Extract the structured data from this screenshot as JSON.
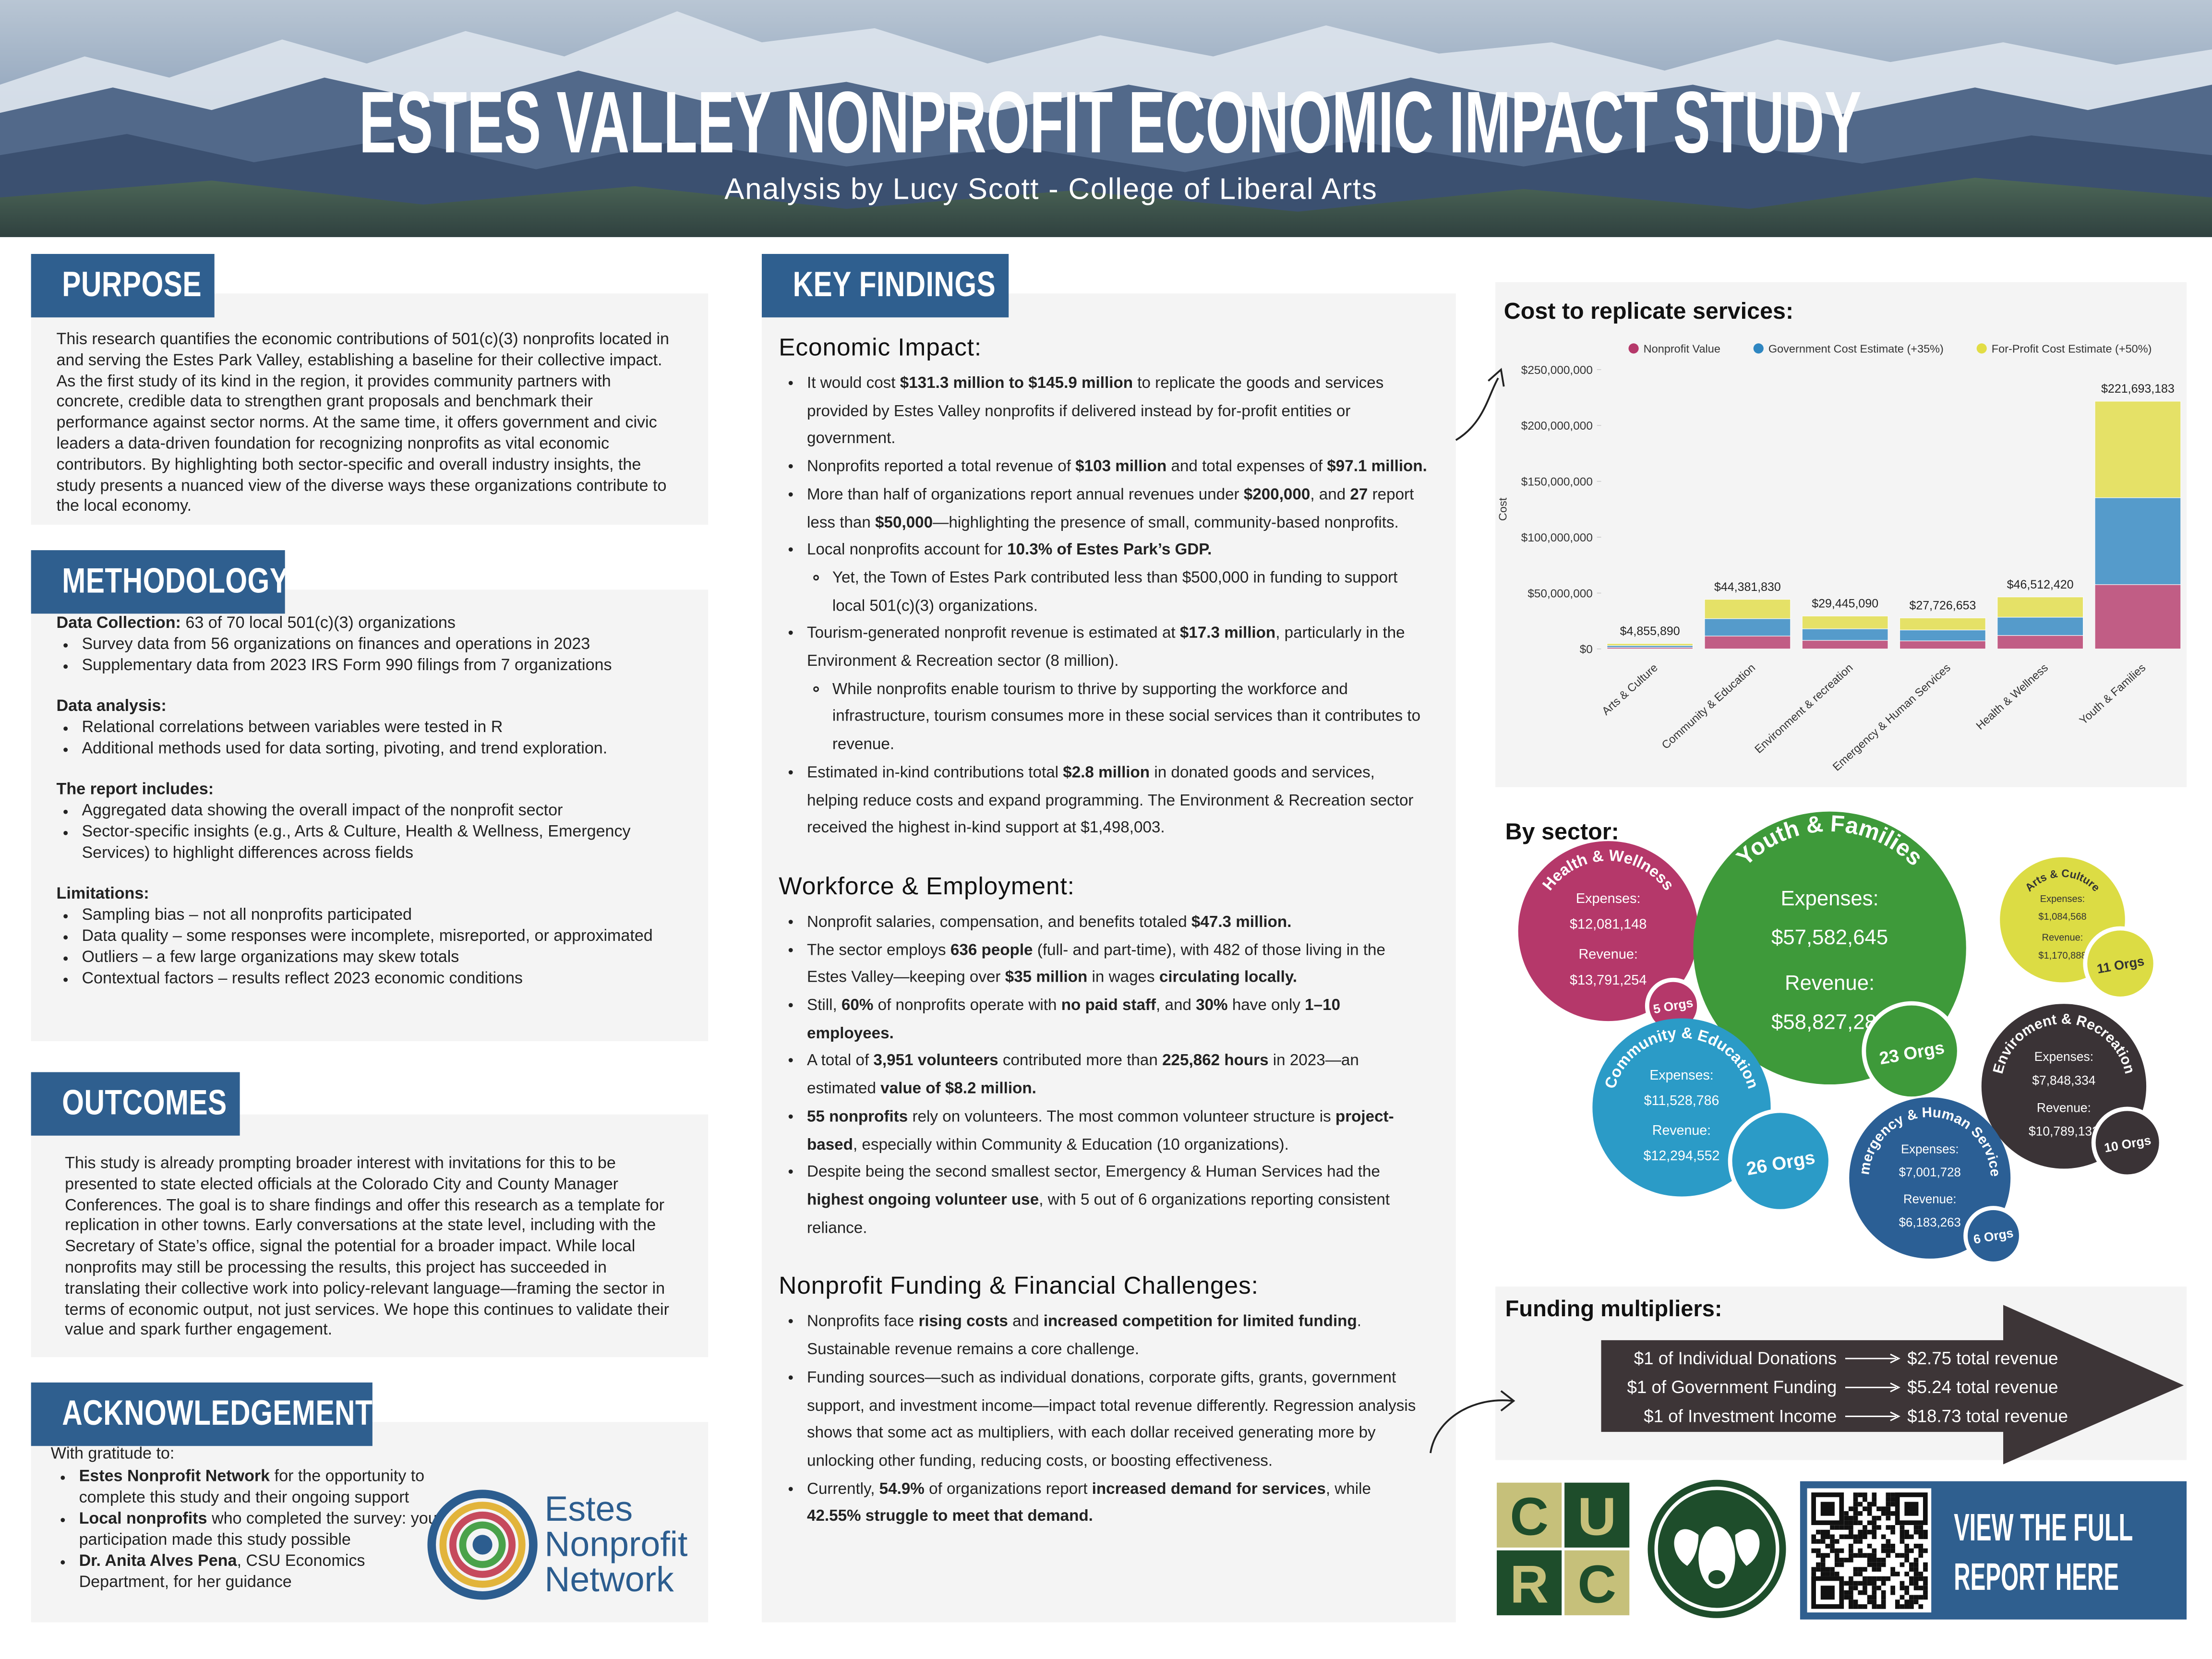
{
  "header": {
    "title": "ESTES VALLEY NONPROFIT ECONOMIC IMPACT STUDY",
    "subtitle": "Analysis by Lucy Scott - College of Liberal Arts"
  },
  "purpose": {
    "heading": "PURPOSE",
    "text": "This research quantifies the economic contributions of 501(c)(3) nonprofits located in and serving the Estes Park Valley, establishing a baseline for their collective impact. As the first study of its kind in the region, it provides community partners with concrete, credible data to strengthen grant proposals and benchmark their performance against sector norms. At the same time, it offers government and civic leaders a data-driven foundation for recognizing nonprofits as vital economic contributors. By highlighting both sector-specific and overall industry insights, the study presents a nuanced view of the diverse ways these organizations contribute to the local economy."
  },
  "methodology": {
    "heading": "METHODOLOGY",
    "groups": [
      {
        "label": "Data Collection:",
        "text": "63 of 70 local 501(c)(3) organizations",
        "bullets": [
          "Survey data from 56 organizations on finances and operations in 2023",
          "Supplementary data from 2023 IRS Form 990 filings from 7 organizations"
        ]
      },
      {
        "label": "Data analysis:",
        "bullets": [
          "Relational correlations between variables were tested in R",
          "Additional methods used for data sorting, pivoting, and trend exploration."
        ]
      },
      {
        "label": "The report includes:",
        "bullets": [
          "Aggregated data showing the overall impact of the nonprofit sector",
          "Sector-specific insights (e.g., Arts & Culture, Health & Wellness, Emergency Services) to highlight differences across fields"
        ]
      },
      {
        "label": "Limitations:",
        "bullets": [
          "Sampling bias – not all nonprofits participated",
          "Data quality – some responses were incomplete, misreported, or approximated",
          "Outliers – a few large organizations may skew totals",
          "Contextual factors – results reflect 2023 economic conditions"
        ]
      }
    ]
  },
  "outcomes": {
    "heading": "OUTCOMES",
    "text": "This study is already prompting broader interest with invitations for this to be presented to state elected officials at the Colorado City and County Manager Conferences. The goal is to share findings and offer this research as a template for replication in other towns. Early conversations at the state level, including with the Secretary of State’s office, signal the potential for a broader impact. While local nonprofits may still be processing the results, this project has succeeded in translating their collective work into policy-relevant language—framing the sector in terms of economic output, not just services. We hope this continues to validate their value and spark further engagement."
  },
  "acknowledgements": {
    "heading": "ACKNOWLEDGEMENTS",
    "intro": "With gratitude to:",
    "items": [
      {
        "bold": "Estes Nonprofit Network",
        "text": " for the opportunity to complete this study and their ongoing support"
      },
      {
        "bold": "Local nonprofits",
        "text": " who completed the survey: your participation made this study possible"
      },
      {
        "bold": "Dr. Anita Alves Pena",
        "text": ", CSU Economics Department, for her guidance"
      }
    ],
    "logo": [
      "Estes",
      "Nonprofit",
      "Network"
    ]
  },
  "key_findings": {
    "heading": "KEY FINDINGS",
    "sections": [
      {
        "title": "Economic Impact:",
        "items": [
          {
            "text": [
              "It would cost ",
              {
                "bold": "$131.3 million to $145.9 million"
              },
              " to replicate the goods and services provided by Estes Valley nonprofits if delivered instead by for-profit entities or government."
            ]
          },
          {
            "text": [
              "Nonprofits reported a total revenue of ",
              {
                "bold": "$103 million"
              },
              " and total expenses of ",
              {
                "bold": "$97.1 million."
              }
            ]
          },
          {
            "text": [
              "More than half of organizations report annual revenues under ",
              {
                "bold": "$200,000"
              },
              ", and ",
              {
                "bold": "27"
              },
              " report less than ",
              {
                "bold": "$50,000"
              },
              "—highlighting the presence of small, community-based nonprofits."
            ]
          },
          {
            "text": [
              "Local nonprofits account for ",
              {
                "bold": "10.3% of Estes Park’s GDP."
              }
            ],
            "sub": [
              [
                "Yet, the Town of Estes Park contributed less than $500,000 in funding to support local 501(c)(3) organizations."
              ]
            ]
          },
          {
            "text": [
              "Tourism-generated nonprofit revenue is estimated at ",
              {
                "bold": "$17.3 million"
              },
              ", particularly in the Environment & Recreation sector (8 million)."
            ],
            "sub": [
              [
                "While nonprofits enable tourism to thrive by supporting the workforce and infrastructure, tourism consumes more in these social services than it contributes to revenue."
              ]
            ]
          },
          {
            "text": [
              "Estimated in-kind contributions total ",
              {
                "bold": "$2.8 million"
              },
              " in donated goods and services, helping reduce costs and expand programming. The Environment & Recreation sector received the highest in-kind support at $1,498,003."
            ]
          }
        ]
      },
      {
        "title": "Workforce & Employment:",
        "items": [
          {
            "text": [
              "Nonprofit salaries, compensation, and benefits totaled ",
              {
                "bold": "$47.3 million."
              }
            ]
          },
          {
            "text": [
              "The sector employs ",
              {
                "bold": "636 people"
              },
              " (full- and part-time), with 482 of those living in the Estes Valley—keeping over ",
              {
                "bold": "$35 million"
              },
              " in wages ",
              {
                "bold": "circulating locally."
              }
            ]
          },
          {
            "text": [
              "Still, ",
              {
                "bold": "60%"
              },
              " of nonprofits operate with ",
              {
                "bold": "no paid staff"
              },
              ", and ",
              {
                "bold": "30%"
              },
              " have only ",
              {
                "bold": "1–10 employees."
              }
            ]
          },
          {
            "text": [
              "A total of ",
              {
                "bold": "3,951 volunteers"
              },
              " contributed more than ",
              {
                "bold": "225,862 hours"
              },
              " in 2023—an estimated ",
              {
                "bold": "value of $8.2 million."
              }
            ]
          },
          {
            "text": [
              {
                "bold": "55 nonprofits"
              },
              " rely on volunteers. The most common volunteer structure is ",
              {
                "bold": "project-based"
              },
              ", especially within Community & Education (10 organizations)."
            ]
          },
          {
            "text": [
              "Despite being the second smallest sector, Emergency & Human Services had the ",
              {
                "bold": "highest ongoing volunteer use"
              },
              ", with 5 out of 6 organizations reporting consistent reliance."
            ]
          }
        ]
      },
      {
        "title": "Nonprofit Funding & Financial Challenges:",
        "items": [
          {
            "text": [
              "Nonprofits face ",
              {
                "bold": "rising costs"
              },
              " and ",
              {
                "bold": "increased competition for limited funding"
              },
              ". Sustainable revenue remains a core challenge."
            ]
          },
          {
            "text": [
              "Funding sources—such as individual donations, corporate gifts, grants, government support, and investment income—impact total revenue differently. Regression analysis shows that some act as multipliers, with each dollar received generating more by unlocking other funding, reducing costs, or boosting effectiveness."
            ]
          },
          {
            "text": [
              "Currently, ",
              {
                "bold": "54.9%"
              },
              " of organizations report ",
              {
                "bold": "increased demand for services"
              },
              ", while ",
              {
                "bold": "42.55% struggle to meet that demand."
              }
            ]
          }
        ]
      }
    ]
  },
  "chart_data": [
    {
      "type": "bar",
      "stacked": true,
      "title": "Cost to replicate services:",
      "y_label": "Cost",
      "legend": "top",
      "grid": false,
      "categories": [
        "Arts & Culture",
        "Community & Education",
        "Environment & recreation",
        "Emergency & Human Services",
        "Health & Wellness",
        "Youth & Families"
      ],
      "series": [
        {
          "name": "Nonprofit Value",
          "color": "#b5386a",
          "values": [
            1261270,
            11527748,
            7648075,
            7201728,
            12081148,
            57582645
          ]
        },
        {
          "name": "Government Cost Estimate (+35%)",
          "color": "#2e86c1",
          "values": [
            1702715,
            15562460,
            10324901,
            9722333,
            16309550,
            77736571
          ]
        },
        {
          "name": "For-Profit Cost Estimate (+50%)",
          "color": "#e2dd45",
          "values": [
            1891905,
            17291622,
            11472114,
            10802592,
            18121722,
            86373967
          ]
        }
      ],
      "total_labels": [
        "$4,855,890",
        "$44,381,830",
        "$29,445,090",
        "$27,726,653",
        "$46,512,420",
        "$221,693,183"
      ],
      "ylim": [
        0,
        250000000
      ],
      "yticks": [
        {
          "value": 0,
          "label": "$0"
        },
        {
          "value": 50000000,
          "label": "$50,000,000"
        },
        {
          "value": 100000000,
          "label": "$100,000,000"
        },
        {
          "value": 150000000,
          "label": "$150,000,000"
        },
        {
          "value": 200000000,
          "label": "$200,000,000"
        },
        {
          "value": 250000000,
          "label": "$250,000,000"
        }
      ]
    },
    {
      "type": "bubble",
      "title": "By sector:",
      "expenses_label": "Expenses:",
      "revenue_label": "Revenue:",
      "sectors": [
        {
          "name": "Health & Wellness",
          "color": "#b5386a",
          "expenses": 12081148,
          "expenses_text": "$12,081,148",
          "revenue": 13791254,
          "revenue_text": "$13,791,254",
          "orgs": 5,
          "orgs_text": "5 Orgs"
        },
        {
          "name": "Youth & Families",
          "color": "#3e9a3a",
          "expenses": 57582645,
          "expenses_text": "$57,582,645",
          "revenue": 58827281,
          "revenue_text": "$58,827,281",
          "orgs": 23,
          "orgs_text": "23 Orgs"
        },
        {
          "name": "Arts & Culture",
          "color": "#dcdc44",
          "expenses": 1084568,
          "expenses_text": "$1,084,568",
          "revenue": 1170888,
          "revenue_text": "$1,170,888",
          "orgs": 11,
          "orgs_text": "11 Orgs"
        },
        {
          "name": "Community & Education",
          "color": "#2b9bc7",
          "expenses": 11528786,
          "expenses_text": "$11,528,786",
          "revenue": 12294552,
          "revenue_text": "$12,294,552",
          "orgs": 26,
          "orgs_text": "26 Orgs"
        },
        {
          "name": "Enviroment & Recreation",
          "color": "#3a3336",
          "expenses": 7848334,
          "expenses_text": "$7,848,334",
          "revenue": 10789132,
          "revenue_text": "$10,789,132",
          "orgs": 10,
          "orgs_text": "10 Orgs"
        },
        {
          "name": "Emergency & Human Services",
          "color": "#2b5f95",
          "expenses": 7001728,
          "expenses_text": "$7,001,728",
          "revenue": 6183263,
          "revenue_text": "$6,183,263",
          "orgs": 6,
          "orgs_text": "6 Orgs"
        }
      ]
    }
  ],
  "funding": {
    "title": "Funding multipliers:",
    "rows": [
      {
        "source": "$1 of Individual Donations",
        "result": "$2.75 total revenue"
      },
      {
        "source": "$1 of Government Funding",
        "result": "$5.24 total revenue"
      },
      {
        "source": "$1 of Investment Income",
        "result": "$18.73 total revenue"
      }
    ]
  },
  "logos": {
    "curc": [
      "C",
      "U",
      "R",
      "C"
    ],
    "cta": [
      "VIEW THE FULL",
      "REPORT HERE"
    ]
  }
}
